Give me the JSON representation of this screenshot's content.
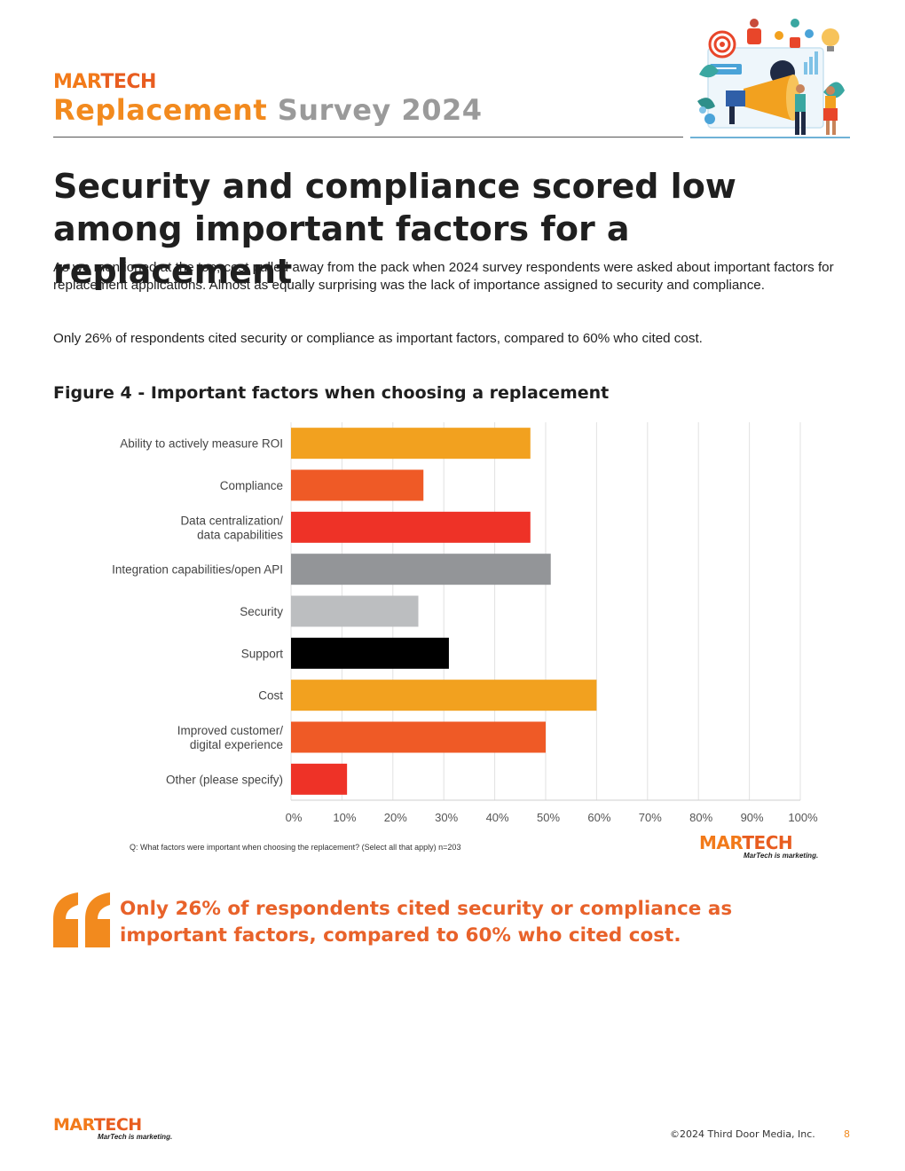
{
  "header": {
    "logo_mar": "MAR",
    "logo_tech": "TECH",
    "title_part1": "Replacement",
    "title_part2": "Survey 2024"
  },
  "headline": "Security and compliance scored low among important factors for a replacement",
  "paragraphs": [
    "As we mentioned at the top, cost pulled away from the pack when 2024 survey respondents were asked about important factors for replacement applications. Almost as equally surprising was the lack of importance assigned to security and compliance.",
    "Only 26% of respondents cited security or compliance as important factors, compared to 60% who cited cost."
  ],
  "figure": {
    "title": "Figure 4 - Important factors when choosing a replacement",
    "note": "Q: What factors were important when choosing the replacement? (Select all that apply) n=203",
    "logo_mar": "MAR",
    "logo_tech": "TECH",
    "tagline": "MarTech is marketing."
  },
  "chart_data": {
    "type": "bar",
    "orientation": "horizontal",
    "title": "Figure 4 - Important factors when choosing a replacement",
    "categories": [
      "Ability to actively measure ROI",
      "Compliance",
      "Data centralization/\ndata capabilities",
      "Integration capabilities/open API",
      "Security",
      "Support",
      "Cost",
      "Improved customer/\ndigital experience",
      "Other (please specify)"
    ],
    "values": [
      47,
      26,
      47,
      51,
      25,
      31,
      60,
      50,
      11
    ],
    "colors": [
      "#f2a11f",
      "#ef5a26",
      "#ee3227",
      "#939598",
      "#bcbec0",
      "#000000",
      "#f2a11f",
      "#ef5a26",
      "#ee3227"
    ],
    "xlim": [
      0,
      100
    ],
    "xticks": [
      "0%",
      "10%",
      "20%",
      "30%",
      "40%",
      "50%",
      "60%",
      "70%",
      "80%",
      "90%",
      "100%"
    ],
    "grid": true,
    "xlabel": "",
    "ylabel": ""
  },
  "quote": "Only 26% of respondents cited security or compliance as important factors, compared to 60% who cited cost.",
  "footer": {
    "logo_mar": "MAR",
    "logo_tech": "TECH",
    "tagline": "MarTech is marketing.",
    "copyright": "©2024 Third Door Media, Inc.",
    "page_number": "8"
  }
}
